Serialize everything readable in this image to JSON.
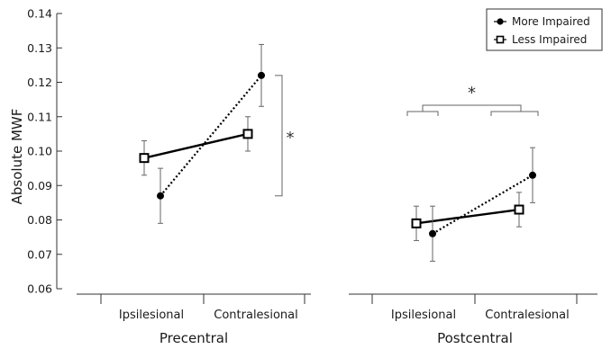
{
  "chart_data": {
    "type": "line",
    "ylabel": "Absolute MWF",
    "ylim": [
      0.06,
      0.14
    ],
    "yticks": [
      "0.06",
      "0.07",
      "0.08",
      "0.09",
      "0.10",
      "0.11",
      "0.12",
      "0.13",
      "0.14"
    ],
    "categories": [
      "Ipsilesional",
      "Contralesional"
    ],
    "groups": [
      {
        "title": "Precentral",
        "series": [
          {
            "name": "More Impaired",
            "values": [
              0.087,
              0.122
            ],
            "errors": [
              0.008,
              0.009
            ]
          },
          {
            "name": "Less Impaired",
            "values": [
              0.098,
              0.105
            ],
            "errors": [
              0.005,
              0.005
            ]
          }
        ],
        "annotation": "*"
      },
      {
        "title": "Postcentral",
        "series": [
          {
            "name": "More Impaired",
            "values": [
              0.076,
              0.093
            ],
            "errors": [
              0.008,
              0.008
            ]
          },
          {
            "name": "Less Impaired",
            "values": [
              0.079,
              0.083
            ],
            "errors": [
              0.005,
              0.005
            ]
          }
        ],
        "annotation": "*"
      }
    ],
    "legend": {
      "position": "top-right",
      "entries": [
        {
          "name": "More Impaired",
          "marker": "filled-circle",
          "line": "dotted"
        },
        {
          "name": "Less Impaired",
          "marker": "open-square",
          "line": "solid"
        }
      ]
    },
    "colors": {
      "lines": "#000000",
      "error_bars": "#666666",
      "annotation": "#666666"
    }
  }
}
